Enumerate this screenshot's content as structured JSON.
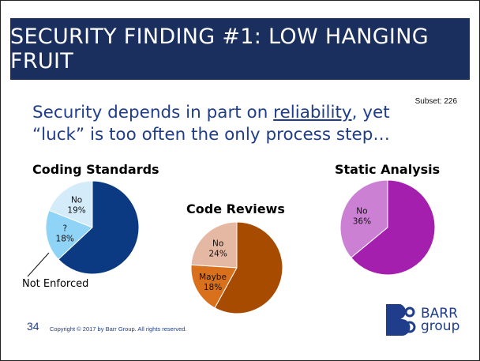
{
  "slide": {
    "title": "SECURITY FINDING #1: LOW HANGING FRUIT",
    "subset": "Subset: 226",
    "headline_part1": "Security depends in part on ",
    "headline_underlined": "reliability",
    "headline_part2": ", yet “luck” is too often the only process step…",
    "callout_label": "Not Enforced",
    "page_number": "34",
    "copyright": "Copyright © 2017 by Barr Group.  All rights reserved.",
    "logo_text_line1": "BARR",
    "logo_text_line2": "group",
    "banner_color": "#1b2f5e",
    "headline_color": "#1f3d8a"
  },
  "chart_data": [
    {
      "type": "pie",
      "title": "Coding Standards",
      "slices": [
        {
          "label": "No",
          "value": 19,
          "value_label": "19%",
          "color": "#d4ebfa"
        },
        {
          "label": "?",
          "value": 18,
          "value_label": "18%",
          "color": "#8fd3f6"
        },
        {
          "label": "",
          "value": 63,
          "value_label": "",
          "color": "#0b3a82"
        }
      ]
    },
    {
      "type": "pie",
      "title": "Code Reviews",
      "slices": [
        {
          "label": "No",
          "value": 24,
          "value_label": "24%",
          "color": "#e5b8a4"
        },
        {
          "label": "Maybe",
          "value": 18,
          "value_label": "18%",
          "color": "#d9701c"
        },
        {
          "label": "",
          "value": 58,
          "value_label": "",
          "color": "#a64b00"
        }
      ]
    },
    {
      "type": "pie",
      "title": "Static Analysis",
      "slices": [
        {
          "label": "No",
          "value": 36,
          "value_label": "36%",
          "color": "#cc80d4"
        },
        {
          "label": "",
          "value": 64,
          "value_label": "",
          "color": "#a51fae"
        }
      ]
    }
  ]
}
